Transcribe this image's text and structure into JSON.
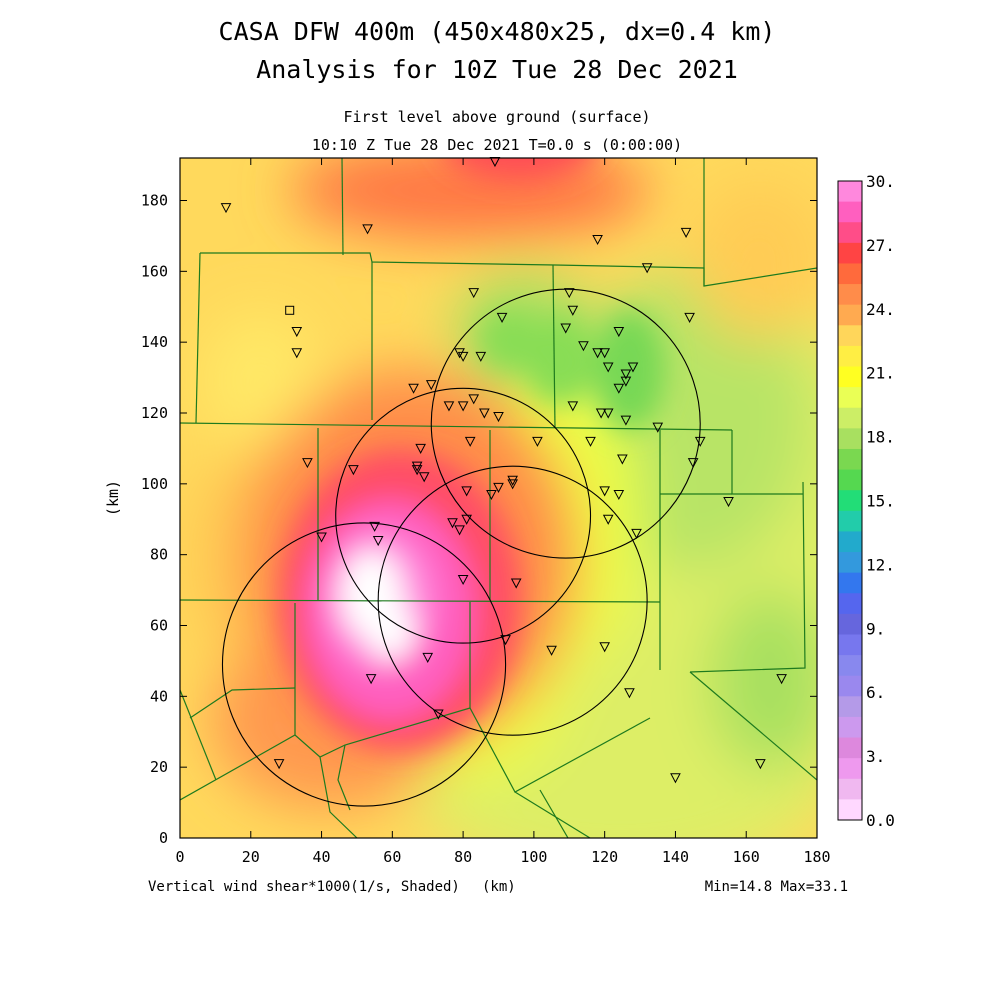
{
  "title": {
    "line1": "CASA DFW 400m (450x480x25, dx=0.4 km)",
    "line2": "Analysis for 10Z Tue 28 Dec 2021"
  },
  "subtitle": {
    "line1": "First level above ground (surface)",
    "line2": "10:10 Z Tue 28 Dec 2021   T=0.0 s (0:00:00)"
  },
  "axes": {
    "x_unit": "(km)",
    "y_unit": "(km)",
    "x_ticks": [
      "0",
      "20",
      "40",
      "60",
      "80",
      "100",
      "120",
      "140",
      "160",
      "180"
    ],
    "y_ticks": [
      "0",
      "20",
      "40",
      "60",
      "80",
      "100",
      "120",
      "140",
      "160",
      "180"
    ],
    "x_range": [
      0,
      180
    ],
    "y_range": [
      0,
      192
    ]
  },
  "footer": {
    "variable": "Vertical wind shear*1000(1/s, Shaded)",
    "unit": "(km)",
    "minmax": "Min=14.8 Max=33.1"
  },
  "colorbar": {
    "labels": [
      "30.",
      "27.",
      "24.",
      "21.",
      "18.",
      "15.",
      "12.",
      "9.",
      "6.",
      "3.",
      "0.0"
    ],
    "colors": [
      "#ff88dd",
      "#ff5fbf",
      "#ff4d88",
      "#ff4444",
      "#ff6a3c",
      "#ff8c4a",
      "#ffaa50",
      "#ffd65a",
      "#ffee44",
      "#ffff22",
      "#eaff55",
      "#ccee66",
      "#a8e060",
      "#7ad850",
      "#55d850",
      "#22dd77",
      "#22ccaa",
      "#22aacc",
      "#3399dd",
      "#3377ee",
      "#5566ee",
      "#6666dd",
      "#7777ee",
      "#8888ee",
      "#9a88ee",
      "#b49ae8",
      "#cc99ee",
      "#dd88dd",
      "#ee99ee",
      "#f0b8f0",
      "#ffd8ff"
    ],
    "range": [
      0,
      30
    ]
  },
  "colors": {
    "county_lines": "#1e7a1e",
    "radar_rings": "#000000",
    "frame": "#000000"
  },
  "rings": [
    {
      "cx_km": 109,
      "cy_km": 117,
      "r_km": 38
    },
    {
      "cx_km": 80,
      "cy_km": 91,
      "r_km": 36
    },
    {
      "cx_km": 94,
      "cy_km": 67,
      "r_km": 38
    },
    {
      "cx_km": 52,
      "cy_km": 49,
      "r_km": 40
    }
  ],
  "stations_tri": [
    [
      13,
      178
    ],
    [
      53,
      172
    ],
    [
      89,
      191
    ],
    [
      118,
      169
    ],
    [
      143,
      171
    ],
    [
      132,
      161
    ],
    [
      83,
      154
    ],
    [
      110,
      154
    ],
    [
      111,
      149
    ],
    [
      91,
      147
    ],
    [
      33,
      143
    ],
    [
      33,
      137
    ],
    [
      79,
      137
    ],
    [
      80,
      136
    ],
    [
      85,
      136
    ],
    [
      109,
      144
    ],
    [
      124,
      143
    ],
    [
      144,
      147
    ],
    [
      114,
      139
    ],
    [
      118,
      137
    ],
    [
      120,
      137
    ],
    [
      121,
      133
    ],
    [
      128,
      133
    ],
    [
      126,
      131
    ],
    [
      126,
      129
    ],
    [
      124,
      127
    ],
    [
      66,
      127
    ],
    [
      71,
      128
    ],
    [
      76,
      122
    ],
    [
      80,
      122
    ],
    [
      83,
      124
    ],
    [
      86,
      120
    ],
    [
      90,
      119
    ],
    [
      111,
      122
    ],
    [
      119,
      120
    ],
    [
      121,
      120
    ],
    [
      126,
      118
    ],
    [
      135,
      116
    ],
    [
      147,
      112
    ],
    [
      101,
      112
    ],
    [
      116,
      112
    ],
    [
      82,
      112
    ],
    [
      68,
      110
    ],
    [
      125,
      107
    ],
    [
      145,
      106
    ],
    [
      36,
      106
    ],
    [
      49,
      104
    ],
    [
      67,
      105
    ],
    [
      67,
      104
    ],
    [
      69,
      102
    ],
    [
      94,
      101
    ],
    [
      94,
      100
    ],
    [
      90,
      99
    ],
    [
      88,
      97
    ],
    [
      81,
      98
    ],
    [
      120,
      98
    ],
    [
      124,
      97
    ],
    [
      155,
      95
    ],
    [
      81,
      90
    ],
    [
      77,
      89
    ],
    [
      79,
      87
    ],
    [
      121,
      90
    ],
    [
      129,
      86
    ],
    [
      40,
      85
    ],
    [
      55,
      88
    ],
    [
      56,
      84
    ],
    [
      80,
      73
    ],
    [
      95,
      72
    ],
    [
      92,
      56
    ],
    [
      105,
      53
    ],
    [
      120,
      54
    ],
    [
      70,
      51
    ],
    [
      54,
      45
    ],
    [
      127,
      41
    ],
    [
      73,
      35
    ],
    [
      28,
      21
    ],
    [
      164,
      21
    ],
    [
      140,
      17
    ],
    [
      170,
      45
    ]
  ],
  "stations_sq": [
    [
      31,
      149
    ]
  ]
}
